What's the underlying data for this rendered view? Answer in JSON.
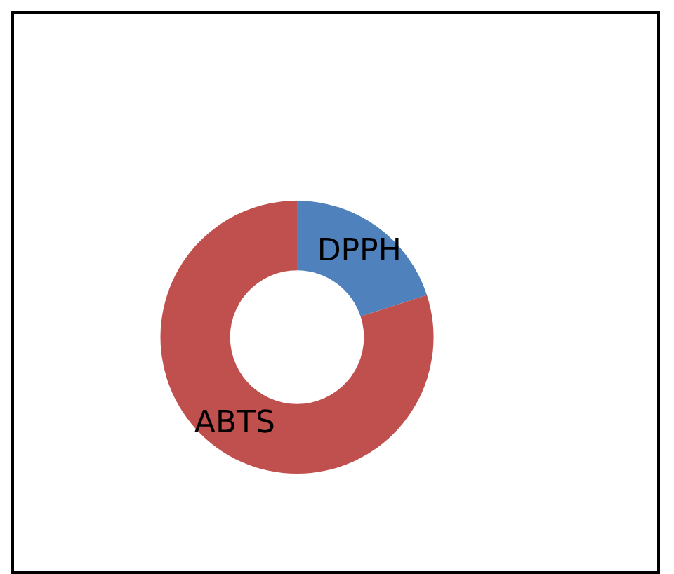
{
  "chart_data": {
    "type": "donut",
    "categories": [
      "DPPH",
      "ABTS"
    ],
    "values": [
      20,
      80
    ],
    "colors": [
      "#4f81bd",
      "#c0504d"
    ],
    "legend": false
  }
}
